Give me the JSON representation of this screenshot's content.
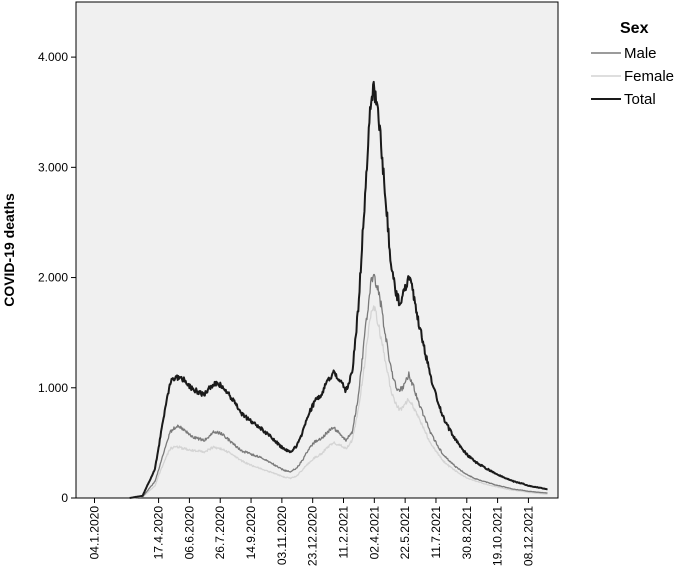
{
  "chart_data": {
    "type": "line",
    "title": "",
    "xlabel": "",
    "ylabel": "COVID-19 deaths",
    "ylim": [
      0,
      4500
    ],
    "yticks": [
      0,
      1000,
      2000,
      3000,
      4000
    ],
    "ytick_labels": [
      "0",
      "1.000",
      "2.000",
      "3.000",
      "4.000"
    ],
    "xlim": [
      "2019-12-05",
      "2022-01-25"
    ],
    "xticks": [
      "2020-01-04",
      "2020-04-17",
      "2020-06-06",
      "2020-07-26",
      "2020-09-14",
      "2020-11-03",
      "2020-12-23",
      "2021-02-11",
      "2021-04-02",
      "2021-05-22",
      "2021-07-11",
      "2021-08-30",
      "2021-10-19",
      "2021-12-08"
    ],
    "xtick_labels": [
      "04.1.2020",
      "17.4.2020",
      "06.6.2020",
      "26.7.2020",
      "14.9.2020",
      "03.11.2020",
      "23.12.2020",
      "11.2.2021",
      "02.4.2021",
      "22.5.2021",
      "11.7.2021",
      "30.8.2021",
      "19.10.2021",
      "08.12.2021"
    ],
    "grid": false,
    "legend": {
      "title": "Sex",
      "position": "top-right"
    },
    "background": "#f0f0f0",
    "x": [
      "2020-03-01",
      "2020-03-22",
      "2020-04-11",
      "2020-04-21",
      "2020-05-01",
      "2020-05-06",
      "2020-05-16",
      "2020-05-26",
      "2020-06-10",
      "2020-06-30",
      "2020-07-15",
      "2020-07-30",
      "2020-08-14",
      "2020-08-29",
      "2020-09-13",
      "2020-09-28",
      "2020-10-13",
      "2020-10-28",
      "2020-11-07",
      "2020-11-17",
      "2020-11-27",
      "2020-12-07",
      "2020-12-17",
      "2020-12-27",
      "2021-01-06",
      "2021-01-16",
      "2021-01-26",
      "2021-02-05",
      "2021-02-15",
      "2021-02-25",
      "2021-03-07",
      "2021-03-17",
      "2021-03-24",
      "2021-03-29",
      "2021-04-03",
      "2021-04-08",
      "2021-04-13",
      "2021-04-18",
      "2021-04-23",
      "2021-04-28",
      "2021-05-03",
      "2021-05-08",
      "2021-05-13",
      "2021-05-18",
      "2021-05-23",
      "2021-05-28",
      "2021-06-02",
      "2021-06-07",
      "2021-06-12",
      "2021-06-22",
      "2021-07-02",
      "2021-07-12",
      "2021-07-22",
      "2021-08-01",
      "2021-08-11",
      "2021-08-21",
      "2021-08-31",
      "2021-09-15",
      "2021-09-30",
      "2021-10-15",
      "2021-10-30",
      "2021-11-14",
      "2021-11-29",
      "2021-12-09",
      "2021-12-19",
      "2021-12-29",
      "2022-01-08"
    ],
    "series": [
      {
        "name": "Male",
        "color": "#7a7a7a",
        "values": [
          0,
          10,
          150,
          330,
          520,
          600,
          650,
          630,
          560,
          520,
          600,
          580,
          500,
          430,
          400,
          370,
          330,
          280,
          250,
          240,
          270,
          350,
          450,
          510,
          540,
          600,
          640,
          580,
          520,
          600,
          920,
          1450,
          1800,
          1990,
          1980,
          1900,
          1750,
          1550,
          1380,
          1200,
          1080,
          1000,
          980,
          1000,
          1060,
          1120,
          1050,
          970,
          880,
          740,
          600,
          490,
          400,
          340,
          290,
          245,
          210,
          170,
          145,
          120,
          100,
          80,
          70,
          60,
          55,
          50,
          45
        ]
      },
      {
        "name": "Female",
        "color": "#d4d4d4",
        "values": [
          0,
          8,
          110,
          260,
          390,
          450,
          470,
          450,
          430,
          420,
          460,
          440,
          400,
          340,
          300,
          270,
          240,
          210,
          190,
          180,
          200,
          260,
          320,
          370,
          400,
          460,
          500,
          480,
          450,
          520,
          800,
          1200,
          1550,
          1720,
          1700,
          1600,
          1450,
          1300,
          1150,
          1000,
          900,
          840,
          800,
          820,
          860,
          900,
          860,
          800,
          740,
          620,
          500,
          420,
          340,
          290,
          250,
          210,
          180,
          150,
          125,
          105,
          85,
          70,
          60,
          50,
          45,
          40,
          35
        ]
      },
      {
        "name": "Total",
        "color": "#1a1a1a",
        "values": [
          0,
          20,
          260,
          590,
          920,
          1050,
          1100,
          1080,
          990,
          940,
          1040,
          1020,
          900,
          770,
          700,
          640,
          570,
          490,
          440,
          420,
          470,
          600,
          770,
          880,
          940,
          1060,
          1140,
          1070,
          970,
          1130,
          1720,
          2650,
          3350,
          3700,
          3680,
          3500,
          3200,
          2850,
          2530,
          2200,
          1980,
          1840,
          1780,
          1820,
          1920,
          2000,
          1910,
          1770,
          1620,
          1360,
          1100,
          910,
          740,
          630,
          540,
          455,
          390,
          320,
          270,
          225,
          185,
          150,
          130,
          110,
          100,
          90,
          80
        ]
      }
    ]
  }
}
